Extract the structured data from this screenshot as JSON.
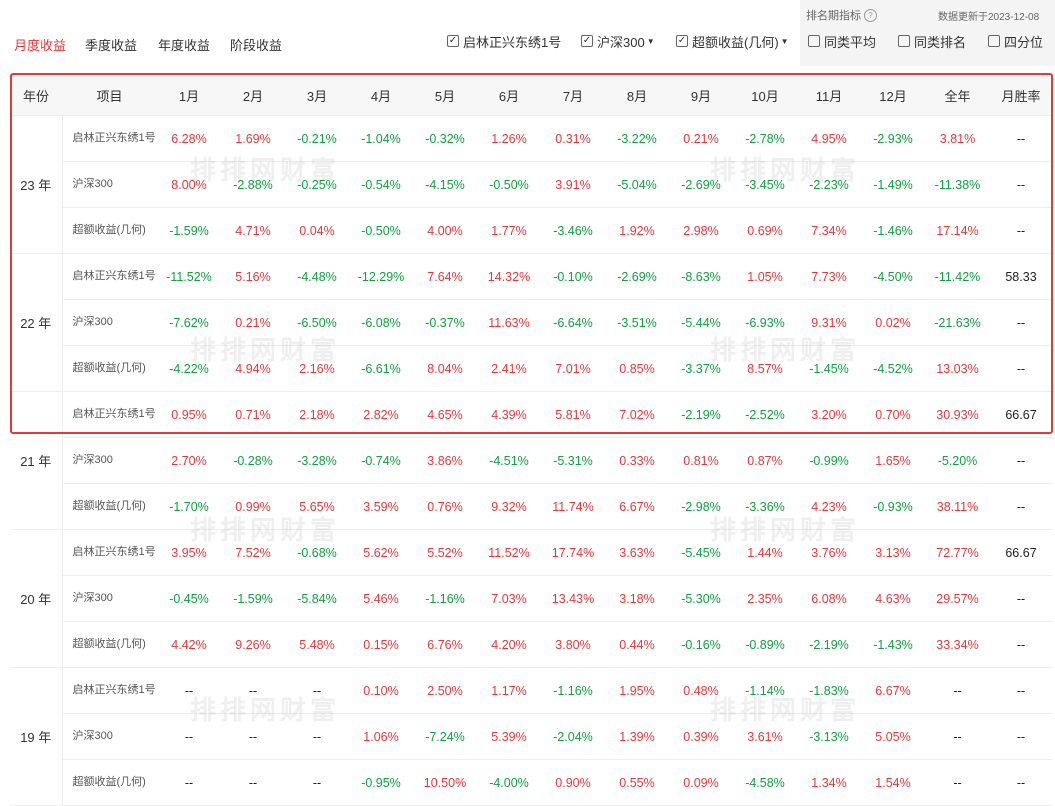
{
  "tabs": [
    "月度收益",
    "季度收益",
    "年度收益",
    "阶段收益"
  ],
  "filters": [
    {
      "label": "启林正兴东绣1号",
      "checked": true,
      "dropdown": false
    },
    {
      "label": "沪深300",
      "checked": true,
      "dropdown": true
    },
    {
      "label": "超额收益(几何)",
      "checked": true,
      "dropdown": true
    },
    {
      "label": "同类平均",
      "checked": false,
      "dropdown": false
    },
    {
      "label": "同类排名",
      "checked": false,
      "dropdown": false
    },
    {
      "label": "四分位",
      "checked": false,
      "dropdown": false
    }
  ],
  "rank_label": "排名期指标",
  "update_text": "数据更新于2023-12-08",
  "watermark": "排排网财富",
  "colors": {
    "accent": "#e4393c",
    "positive": "#e4393c",
    "negative": "#11a042"
  },
  "table": {
    "headers": [
      "年份",
      "项目",
      "1月",
      "2月",
      "3月",
      "4月",
      "5月",
      "6月",
      "7月",
      "8月",
      "9月",
      "10月",
      "11月",
      "12月",
      "全年",
      "月胜率"
    ],
    "groups": [
      {
        "year": "23 年",
        "rows": [
          {
            "item": "启林正兴东绣1号",
            "values": [
              "6.28%",
              "1.69%",
              "-0.21%",
              "-1.04%",
              "-0.32%",
              "1.26%",
              "0.31%",
              "-3.22%",
              "0.21%",
              "-2.78%",
              "4.95%",
              "-2.93%",
              "3.81%",
              "--"
            ]
          },
          {
            "item": "沪深300",
            "values": [
              "8.00%",
              "-2.88%",
              "-0.25%",
              "-0.54%",
              "-4.15%",
              "-0.50%",
              "3.91%",
              "-5.04%",
              "-2.69%",
              "-3.45%",
              "-2.23%",
              "-1.49%",
              "-11.38%",
              "--"
            ]
          },
          {
            "item": "超额收益(几何)",
            "values": [
              "-1.59%",
              "4.71%",
              "0.04%",
              "-0.50%",
              "4.00%",
              "1.77%",
              "-3.46%",
              "1.92%",
              "2.98%",
              "0.69%",
              "7.34%",
              "-1.46%",
              "17.14%",
              "--"
            ]
          }
        ]
      },
      {
        "year": "22 年",
        "rows": [
          {
            "item": "启林正兴东绣1号",
            "values": [
              "-11.52%",
              "5.16%",
              "-4.48%",
              "-12.29%",
              "7.64%",
              "14.32%",
              "-0.10%",
              "-2.69%",
              "-8.63%",
              "1.05%",
              "7.73%",
              "-4.50%",
              "-11.42%",
              "58.33"
            ]
          },
          {
            "item": "沪深300",
            "values": [
              "-7.62%",
              "0.21%",
              "-6.50%",
              "-6.08%",
              "-0.37%",
              "11.63%",
              "-6.64%",
              "-3.51%",
              "-5.44%",
              "-6.93%",
              "9.31%",
              "0.02%",
              "-21.63%",
              "--"
            ]
          },
          {
            "item": "超额收益(几何)",
            "values": [
              "-4.22%",
              "4.94%",
              "2.16%",
              "-6.61%",
              "8.04%",
              "2.41%",
              "7.01%",
              "0.85%",
              "-3.37%",
              "8.57%",
              "-1.45%",
              "-4.52%",
              "13.03%",
              "--"
            ]
          }
        ]
      },
      {
        "year": "21 年",
        "rows": [
          {
            "item": "启林正兴东绣1号",
            "values": [
              "0.95%",
              "0.71%",
              "2.18%",
              "2.82%",
              "4.65%",
              "4.39%",
              "5.81%",
              "7.02%",
              "-2.19%",
              "-2.52%",
              "3.20%",
              "0.70%",
              "30.93%",
              "66.67"
            ]
          },
          {
            "item": "沪深300",
            "values": [
              "2.70%",
              "-0.28%",
              "-3.28%",
              "-0.74%",
              "3.86%",
              "-4.51%",
              "-5.31%",
              "0.33%",
              "0.81%",
              "0.87%",
              "-0.99%",
              "1.65%",
              "-5.20%",
              "--"
            ]
          },
          {
            "item": "超额收益(几何)",
            "values": [
              "-1.70%",
              "0.99%",
              "5.65%",
              "3.59%",
              "0.76%",
              "9.32%",
              "11.74%",
              "6.67%",
              "-2.98%",
              "-3.36%",
              "4.23%",
              "-0.93%",
              "38.11%",
              "--"
            ]
          }
        ]
      },
      {
        "year": "20 年",
        "rows": [
          {
            "item": "启林正兴东绣1号",
            "values": [
              "3.95%",
              "7.52%",
              "-0.68%",
              "5.62%",
              "5.52%",
              "11.52%",
              "17.74%",
              "3.63%",
              "-5.45%",
              "1.44%",
              "3.76%",
              "3.13%",
              "72.77%",
              "66.67"
            ]
          },
          {
            "item": "沪深300",
            "values": [
              "-0.45%",
              "-1.59%",
              "-5.84%",
              "5.46%",
              "-1.16%",
              "7.03%",
              "13.43%",
              "3.18%",
              "-5.30%",
              "2.35%",
              "6.08%",
              "4.63%",
              "29.57%",
              "--"
            ]
          },
          {
            "item": "超额收益(几何)",
            "values": [
              "4.42%",
              "9.26%",
              "5.48%",
              "0.15%",
              "6.76%",
              "4.20%",
              "3.80%",
              "0.44%",
              "-0.16%",
              "-0.89%",
              "-2.19%",
              "-1.43%",
              "33.34%",
              "--"
            ]
          }
        ]
      },
      {
        "year": "19 年",
        "rows": [
          {
            "item": "启林正兴东绣1号",
            "values": [
              "--",
              "--",
              "--",
              "0.10%",
              "2.50%",
              "1.17%",
              "-1.16%",
              "1.95%",
              "0.48%",
              "-1.14%",
              "-1.83%",
              "6.67%",
              "--",
              "--"
            ]
          },
          {
            "item": "沪深300",
            "values": [
              "--",
              "--",
              "--",
              "1.06%",
              "-7.24%",
              "5.39%",
              "-2.04%",
              "1.39%",
              "0.39%",
              "3.61%",
              "-3.13%",
              "5.05%",
              "--",
              "--"
            ]
          },
          {
            "item": "超额收益(几何)",
            "values": [
              "--",
              "--",
              "--",
              "-0.95%",
              "10.50%",
              "-4.00%",
              "0.90%",
              "0.55%",
              "0.09%",
              "-4.58%",
              "1.34%",
              "1.54%",
              "--",
              "--"
            ]
          }
        ]
      }
    ]
  }
}
